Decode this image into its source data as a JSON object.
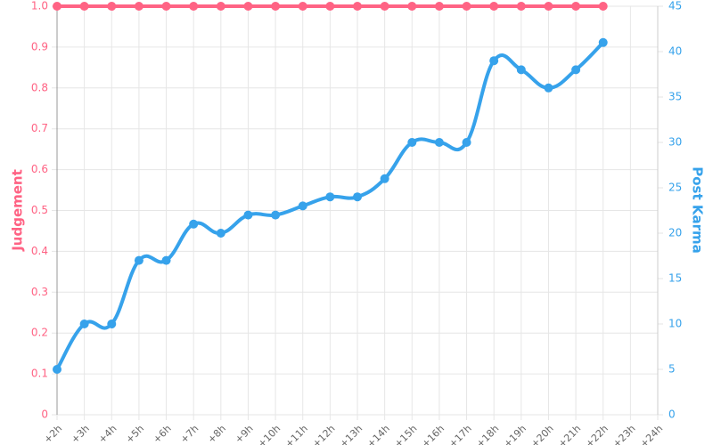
{
  "chart_data": {
    "type": "line",
    "categories": [
      "+2h",
      "+3h",
      "+4h",
      "+5h",
      "+6h",
      "+7h",
      "+8h",
      "+9h",
      "+10h",
      "+11h",
      "+12h",
      "+13h",
      "+14h",
      "+15h",
      "+16h",
      "+17h",
      "+18h",
      "+19h",
      "+20h",
      "+21h",
      "+22h",
      "+23h",
      "+24h"
    ],
    "series": [
      {
        "name": "Judgement",
        "color": "#ff6384",
        "axis": "y",
        "values": [
          1,
          1,
          1,
          1,
          1,
          1,
          1,
          1,
          1,
          1,
          1,
          1,
          1,
          1,
          1,
          1,
          1,
          1,
          1,
          1,
          1,
          null,
          null
        ]
      },
      {
        "name": "Post Karma",
        "color": "#36a2eb",
        "axis": "y2",
        "values": [
          5,
          10,
          10,
          17,
          17,
          21,
          20,
          22,
          22,
          23,
          24,
          24,
          26,
          30,
          30,
          30,
          39,
          38,
          36,
          38,
          41,
          null,
          null
        ]
      }
    ],
    "ylim": [
      0,
      1
    ],
    "yticks": [
      0,
      0.1,
      0.2,
      0.3,
      0.4,
      0.5,
      0.6,
      0.7,
      0.8,
      0.9,
      {
        "value": 1,
        "label": "1.0"
      }
    ],
    "y2lim": [
      0,
      45
    ],
    "y2ticks": [
      0,
      5,
      10,
      15,
      20,
      25,
      30,
      35,
      40,
      45
    ],
    "grid": true
  }
}
